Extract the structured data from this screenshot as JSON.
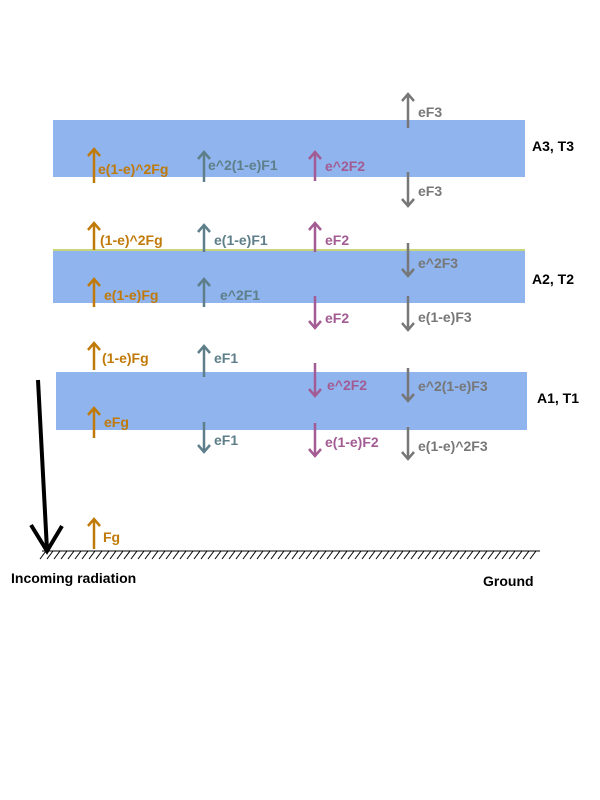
{
  "colors": {
    "layer_fill": "#8fb4ee",
    "layer_edge": "#c8d67a",
    "ground": "#000000",
    "ground_series": "#c07a0a",
    "f1_series": "#5e7f8a",
    "f2_series": "#a35c93",
    "f3_series": "#777777",
    "incoming": "#000000"
  },
  "layers": [
    {
      "name": "A3, T3"
    },
    {
      "name": "A2, T2"
    },
    {
      "name": "A1, T1"
    }
  ],
  "ground": {
    "label": "Ground"
  },
  "incoming": {
    "label": "Incoming radiation"
  },
  "flux_labels": {
    "fg": "Fg",
    "efg": "eFg",
    "one_minus_e_fg": "(1-e)Fg",
    "e_one_minus_e_fg": "e(1-e)Fg",
    "one_minus_e_sq_fg": "(1-e)^2Fg",
    "e_one_minus_e_sq_fg": "e(1-e)^2Fg",
    "ef1_down": "eF1",
    "ef1_up": "eF1",
    "e_sq_f1": "e^2F1",
    "e_one_minus_e_f1": "e(1-e)F1",
    "e_sq_one_minus_e_f1": "e^2(1-e)F1",
    "e_one_minus_e_f2_down": "e(1-e)F2",
    "e_sq_f2_down": "e^2F2",
    "ef2_down": "eF2",
    "ef2_up": "eF2",
    "e_sq_f2_up": "e^2F2",
    "e_one_minus_e_sq_f3": "e(1-e)^2F3",
    "e_sq_one_minus_e_f3": "e^2(1-e)F3",
    "e_one_minus_e_f3": "e(1-e)F3",
    "e_sq_f3": "e^2F3",
    "ef3_down": "eF3",
    "ef3_up": "eF3"
  }
}
